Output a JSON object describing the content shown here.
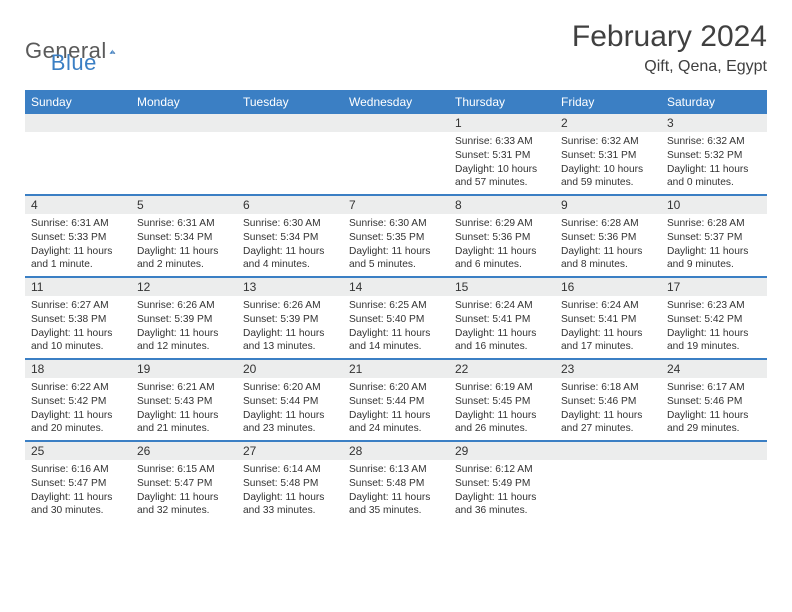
{
  "brand": {
    "text1": "General",
    "text2": "Blue"
  },
  "title": "February 2024",
  "location": "Qift, Qena, Egypt",
  "colors": {
    "accent": "#3b7fc4",
    "header_grey": "#eceded",
    "text": "#333333",
    "background": "#ffffff"
  },
  "typography": {
    "title_fontsize": 30,
    "body_fontsize": 10.2,
    "dayheader_fontsize": 12
  },
  "layout": {
    "columns": 7,
    "rows": 5
  },
  "day_names": [
    "Sunday",
    "Monday",
    "Tuesday",
    "Wednesday",
    "Thursday",
    "Friday",
    "Saturday"
  ],
  "weeks": [
    [
      null,
      null,
      null,
      null,
      {
        "n": "1",
        "sr": "6:33 AM",
        "ss": "5:31 PM",
        "dl": "10 hours and 57 minutes."
      },
      {
        "n": "2",
        "sr": "6:32 AM",
        "ss": "5:31 PM",
        "dl": "10 hours and 59 minutes."
      },
      {
        "n": "3",
        "sr": "6:32 AM",
        "ss": "5:32 PM",
        "dl": "11 hours and 0 minutes."
      }
    ],
    [
      {
        "n": "4",
        "sr": "6:31 AM",
        "ss": "5:33 PM",
        "dl": "11 hours and 1 minute."
      },
      {
        "n": "5",
        "sr": "6:31 AM",
        "ss": "5:34 PM",
        "dl": "11 hours and 2 minutes."
      },
      {
        "n": "6",
        "sr": "6:30 AM",
        "ss": "5:34 PM",
        "dl": "11 hours and 4 minutes."
      },
      {
        "n": "7",
        "sr": "6:30 AM",
        "ss": "5:35 PM",
        "dl": "11 hours and 5 minutes."
      },
      {
        "n": "8",
        "sr": "6:29 AM",
        "ss": "5:36 PM",
        "dl": "11 hours and 6 minutes."
      },
      {
        "n": "9",
        "sr": "6:28 AM",
        "ss": "5:36 PM",
        "dl": "11 hours and 8 minutes."
      },
      {
        "n": "10",
        "sr": "6:28 AM",
        "ss": "5:37 PM",
        "dl": "11 hours and 9 minutes."
      }
    ],
    [
      {
        "n": "11",
        "sr": "6:27 AM",
        "ss": "5:38 PM",
        "dl": "11 hours and 10 minutes."
      },
      {
        "n": "12",
        "sr": "6:26 AM",
        "ss": "5:39 PM",
        "dl": "11 hours and 12 minutes."
      },
      {
        "n": "13",
        "sr": "6:26 AM",
        "ss": "5:39 PM",
        "dl": "11 hours and 13 minutes."
      },
      {
        "n": "14",
        "sr": "6:25 AM",
        "ss": "5:40 PM",
        "dl": "11 hours and 14 minutes."
      },
      {
        "n": "15",
        "sr": "6:24 AM",
        "ss": "5:41 PM",
        "dl": "11 hours and 16 minutes."
      },
      {
        "n": "16",
        "sr": "6:24 AM",
        "ss": "5:41 PM",
        "dl": "11 hours and 17 minutes."
      },
      {
        "n": "17",
        "sr": "6:23 AM",
        "ss": "5:42 PM",
        "dl": "11 hours and 19 minutes."
      }
    ],
    [
      {
        "n": "18",
        "sr": "6:22 AM",
        "ss": "5:42 PM",
        "dl": "11 hours and 20 minutes."
      },
      {
        "n": "19",
        "sr": "6:21 AM",
        "ss": "5:43 PM",
        "dl": "11 hours and 21 minutes."
      },
      {
        "n": "20",
        "sr": "6:20 AM",
        "ss": "5:44 PM",
        "dl": "11 hours and 23 minutes."
      },
      {
        "n": "21",
        "sr": "6:20 AM",
        "ss": "5:44 PM",
        "dl": "11 hours and 24 minutes."
      },
      {
        "n": "22",
        "sr": "6:19 AM",
        "ss": "5:45 PM",
        "dl": "11 hours and 26 minutes."
      },
      {
        "n": "23",
        "sr": "6:18 AM",
        "ss": "5:46 PM",
        "dl": "11 hours and 27 minutes."
      },
      {
        "n": "24",
        "sr": "6:17 AM",
        "ss": "5:46 PM",
        "dl": "11 hours and 29 minutes."
      }
    ],
    [
      {
        "n": "25",
        "sr": "6:16 AM",
        "ss": "5:47 PM",
        "dl": "11 hours and 30 minutes."
      },
      {
        "n": "26",
        "sr": "6:15 AM",
        "ss": "5:47 PM",
        "dl": "11 hours and 32 minutes."
      },
      {
        "n": "27",
        "sr": "6:14 AM",
        "ss": "5:48 PM",
        "dl": "11 hours and 33 minutes."
      },
      {
        "n": "28",
        "sr": "6:13 AM",
        "ss": "5:48 PM",
        "dl": "11 hours and 35 minutes."
      },
      {
        "n": "29",
        "sr": "6:12 AM",
        "ss": "5:49 PM",
        "dl": "11 hours and 36 minutes."
      },
      null,
      null
    ]
  ],
  "labels": {
    "sunrise": "Sunrise:",
    "sunset": "Sunset:",
    "daylight": "Daylight:"
  }
}
